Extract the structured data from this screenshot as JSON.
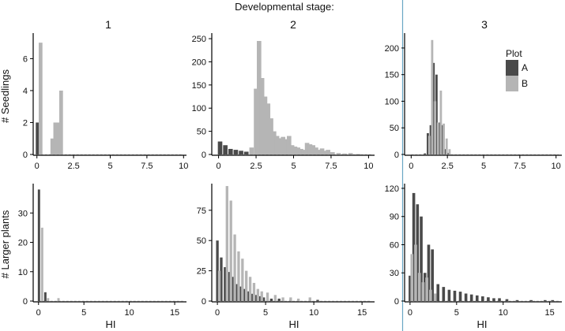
{
  "figure": {
    "title": "Developmental stage:",
    "facet_labels": [
      "1",
      "2",
      "3"
    ],
    "row_labels": [
      "# Seedlings",
      "# Larger plants"
    ],
    "xlabel": "HI",
    "legend": {
      "title": "Plot",
      "items": [
        {
          "label": "A",
          "color": "#4a4a4a"
        },
        {
          "label": "B",
          "color": "#b5b5b5"
        }
      ]
    }
  },
  "chart_data": [
    {
      "type": "bar",
      "panel": "seedlings-stage-1",
      "xlim": [
        -0.2,
        10.2
      ],
      "ylim": [
        0,
        7.6
      ],
      "xticks": [
        0,
        2.5,
        5,
        7.5,
        10
      ],
      "xtick_labels": [
        "0",
        "2.5",
        "5",
        "7.5",
        "10"
      ],
      "yticks": [
        0,
        2,
        4,
        6
      ],
      "ytick_labels": [
        "0",
        "2",
        "4",
        "6"
      ],
      "bin_width": 0.3,
      "series": [
        {
          "name": "A",
          "color": "#4a4a4a",
          "x": [
            0.05
          ],
          "values": [
            2
          ]
        },
        {
          "name": "B",
          "color": "#b5b5b5",
          "x": [
            0.25,
            1.05,
            1.25,
            1.45,
            1.65
          ],
          "values": [
            7,
            1,
            2,
            2,
            4
          ]
        }
      ]
    },
    {
      "type": "bar",
      "panel": "seedlings-stage-2",
      "xlim": [
        -0.4,
        10.4
      ],
      "ylim": [
        0,
        262
      ],
      "xticks": [
        0,
        2.5,
        5,
        7.5,
        10
      ],
      "xtick_labels": [
        "0",
        "2.5",
        "5",
        "7.5",
        "10"
      ],
      "yticks": [
        0,
        50,
        100,
        150,
        200,
        250
      ],
      "ytick_labels": [
        "0",
        "50",
        "100",
        "150",
        "200",
        "250"
      ],
      "bin_width": 0.35,
      "series": [
        {
          "name": "A",
          "color": "#4a4a4a",
          "x": [
            0.1,
            0.45,
            0.8,
            1.15,
            1.5,
            1.85,
            2.9,
            4.2,
            5.6,
            7.2
          ],
          "values": [
            28,
            20,
            12,
            10,
            8,
            6,
            3,
            4,
            3,
            2
          ]
        },
        {
          "name": "B",
          "color": "#b5b5b5",
          "x": [
            2.2,
            2.5,
            2.7,
            2.9,
            3.1,
            3.3,
            3.5,
            3.7,
            3.9,
            4.1,
            4.3,
            4.5,
            4.7,
            4.9,
            5.1,
            5.3,
            5.5,
            5.7,
            5.9,
            6.1,
            6.3,
            6.5,
            6.7,
            6.9,
            7.1,
            7.3,
            7.6,
            8.0,
            8.4,
            8.8,
            9.3
          ],
          "values": [
            15,
            142,
            245,
            165,
            125,
            110,
            78,
            50,
            40,
            35,
            38,
            33,
            40,
            20,
            17,
            15,
            12,
            10,
            25,
            22,
            20,
            15,
            10,
            13,
            8,
            10,
            5,
            3,
            2,
            3,
            1
          ]
        }
      ]
    },
    {
      "type": "bar",
      "panel": "seedlings-stage-3",
      "xlim": [
        -0.4,
        10.4
      ],
      "ylim": [
        0,
        228
      ],
      "xticks": [
        0,
        2.5,
        5,
        7.5,
        10
      ],
      "xtick_labels": [
        "0",
        "2.5",
        "5",
        "7.5",
        "10"
      ],
      "yticks": [
        0,
        50,
        100,
        150,
        200
      ],
      "ytick_labels": [
        "0",
        "50",
        "100",
        "150",
        "200"
      ],
      "bin_width": 0.18,
      "series": [
        {
          "name": "A",
          "color": "#4a4a4a",
          "x": [
            0.95,
            1.15,
            1.35,
            1.55,
            1.75,
            1.95,
            2.15,
            2.35,
            2.55
          ],
          "values": [
            2,
            40,
            55,
            172,
            150,
            60,
            55,
            10,
            3
          ]
        },
        {
          "name": "B",
          "color": "#b5b5b5",
          "x": [
            1.25,
            1.45,
            1.65,
            1.85,
            2.05,
            2.25,
            2.45,
            2.65
          ],
          "values": [
            35,
            215,
            100,
            60,
            120,
            58,
            30,
            10
          ]
        }
      ]
    },
    {
      "type": "bar",
      "panel": "larger-plants-stage-1",
      "xlim": [
        -0.5,
        16.3
      ],
      "ylim": [
        0,
        40
      ],
      "xticks": [
        0,
        5,
        10,
        15
      ],
      "xtick_labels": [
        "0",
        "5",
        "10",
        "15"
      ],
      "yticks": [
        0,
        10,
        20,
        30
      ],
      "ytick_labels": [
        "0",
        "10",
        "20",
        "30"
      ],
      "bin_width": 0.3,
      "series": [
        {
          "name": "A",
          "color": "#4a4a4a",
          "x": [
            0.05,
            0.75
          ],
          "values": [
            38,
            3
          ]
        },
        {
          "name": "B",
          "color": "#b5b5b5",
          "x": [
            0.4,
            1.05,
            2.2
          ],
          "values": [
            25,
            1,
            1
          ]
        }
      ]
    },
    {
      "type": "bar",
      "panel": "larger-plants-stage-2",
      "xlim": [
        -0.5,
        16.3
      ],
      "ylim": [
        0,
        97
      ],
      "xticks": [
        0,
        5,
        10,
        15
      ],
      "xtick_labels": [
        "0",
        "5",
        "10",
        "15"
      ],
      "yticks": [
        0,
        25,
        50,
        75
      ],
      "ytick_labels": [
        "0",
        "25",
        "50",
        "75"
      ],
      "bin_width": 0.32,
      "series": [
        {
          "name": "A",
          "color": "#4a4a4a",
          "x": [
            0.0,
            0.4,
            0.8,
            1.2,
            1.6,
            2.0,
            2.4,
            2.8,
            3.2,
            3.6,
            4.0,
            4.4,
            4.8,
            5.6,
            6.4,
            7.6,
            10.4
          ],
          "values": [
            50,
            36,
            28,
            24,
            20,
            14,
            12,
            10,
            8,
            6,
            5,
            4,
            3,
            2,
            2,
            1,
            1
          ]
        },
        {
          "name": "B",
          "color": "#b5b5b5",
          "x": [
            0.2,
            1.0,
            1.4,
            1.8,
            2.2,
            2.6,
            3.0,
            3.4,
            3.8,
            4.2,
            4.6,
            5.2,
            6.0,
            6.8,
            7.6,
            8.4,
            9.6
          ],
          "values": [
            25,
            95,
            83,
            55,
            41,
            35,
            25,
            20,
            15,
            10,
            8,
            7,
            5,
            3,
            3,
            2,
            3
          ]
        }
      ]
    },
    {
      "type": "bar",
      "panel": "larger-plants-stage-3",
      "xlim": [
        -0.5,
        16.3
      ],
      "ylim": [
        0,
        125
      ],
      "xticks": [
        0,
        5,
        10,
        15
      ],
      "xtick_labels": [
        "0",
        "5",
        "10",
        "15"
      ],
      "yticks": [
        0,
        30,
        60,
        90,
        120
      ],
      "ytick_labels": [
        "0",
        "30",
        "60",
        "90",
        "120"
      ],
      "bin_width": 0.36,
      "series": [
        {
          "name": "A",
          "color": "#4a4a4a",
          "x": [
            0.0,
            0.4,
            0.8,
            1.2,
            1.6,
            2.0,
            2.4,
            3.0,
            3.6,
            4.2,
            4.8,
            5.4,
            6.0,
            6.6,
            7.2,
            7.8,
            8.4,
            9.0,
            9.6,
            10.4,
            11.5,
            13.0,
            14.5,
            15.3
          ],
          "values": [
            27,
            115,
            103,
            90,
            30,
            60,
            55,
            18,
            15,
            12,
            11,
            10,
            8,
            7,
            6,
            5,
            4,
            3,
            3,
            2,
            1,
            1,
            1,
            1
          ]
        },
        {
          "name": "B",
          "color": "#b5b5b5",
          "x": [
            0.2,
            0.6,
            1.0,
            1.4,
            1.8,
            2.2,
            2.7
          ],
          "values": [
            50,
            60,
            30,
            20,
            25,
            12,
            8
          ]
        }
      ]
    }
  ]
}
